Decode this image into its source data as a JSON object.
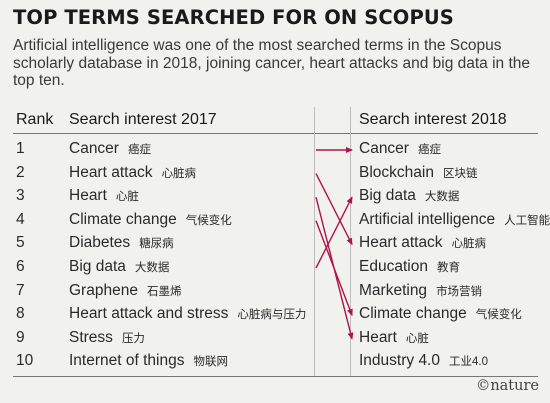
{
  "chart_data": {
    "type": "table",
    "title": "TOP TERMS SEARCHED FOR ON SCOPUS",
    "subtitle": "Artificial intelligence was one of the most searched terms in the Scopus scholarly database in 2018, joining cancer, heart attacks and big data in the top ten.",
    "headers": {
      "rank": "Rank",
      "col2017": "Search interest 2017",
      "col2018": "Search interest 2018"
    },
    "ranks": [
      "1",
      "2",
      "3",
      "4",
      "5",
      "6",
      "7",
      "8",
      "9",
      "10"
    ],
    "terms_2017": [
      {
        "en": "Cancer",
        "zh": "癌症"
      },
      {
        "en": "Heart attack",
        "zh": "心脏病"
      },
      {
        "en": "Heart",
        "zh": "心脏"
      },
      {
        "en": "Climate change",
        "zh": "气候变化"
      },
      {
        "en": "Diabetes",
        "zh": "糖尿病"
      },
      {
        "en": "Big data",
        "zh": "大数据"
      },
      {
        "en": "Graphene",
        "zh": "石墨烯"
      },
      {
        "en": "Heart attack and stress",
        "zh": "心脏病与压力"
      },
      {
        "en": "Stress",
        "zh": "压力"
      },
      {
        "en": "Internet of things",
        "zh": "物联网"
      }
    ],
    "terms_2018": [
      {
        "en": "Cancer",
        "zh": "癌症"
      },
      {
        "en": "Blockchain",
        "zh": "区块链"
      },
      {
        "en": "Big data",
        "zh": "大数据"
      },
      {
        "en": "Artificial intelligence",
        "zh": "人工智能"
      },
      {
        "en": "Heart attack",
        "zh": "心脏病"
      },
      {
        "en": "Education",
        "zh": "教育"
      },
      {
        "en": "Marketing",
        "zh": "市场营销"
      },
      {
        "en": "Climate change",
        "zh": "气候变化"
      },
      {
        "en": "Heart",
        "zh": "心脏"
      },
      {
        "en": "Industry 4.0",
        "zh": "工业4.0"
      }
    ],
    "rank_changes": [
      {
        "term": "Cancer",
        "rank_2017": 1,
        "rank_2018": 1
      },
      {
        "term": "Heart attack",
        "rank_2017": 2,
        "rank_2018": 5
      },
      {
        "term": "Heart",
        "rank_2017": 3,
        "rank_2018": 9
      },
      {
        "term": "Climate change",
        "rank_2017": 4,
        "rank_2018": 8
      },
      {
        "term": "Big data",
        "rank_2017": 6,
        "rank_2018": 3
      }
    ],
    "link_color": "#b0134a"
  },
  "credit": "©nature"
}
